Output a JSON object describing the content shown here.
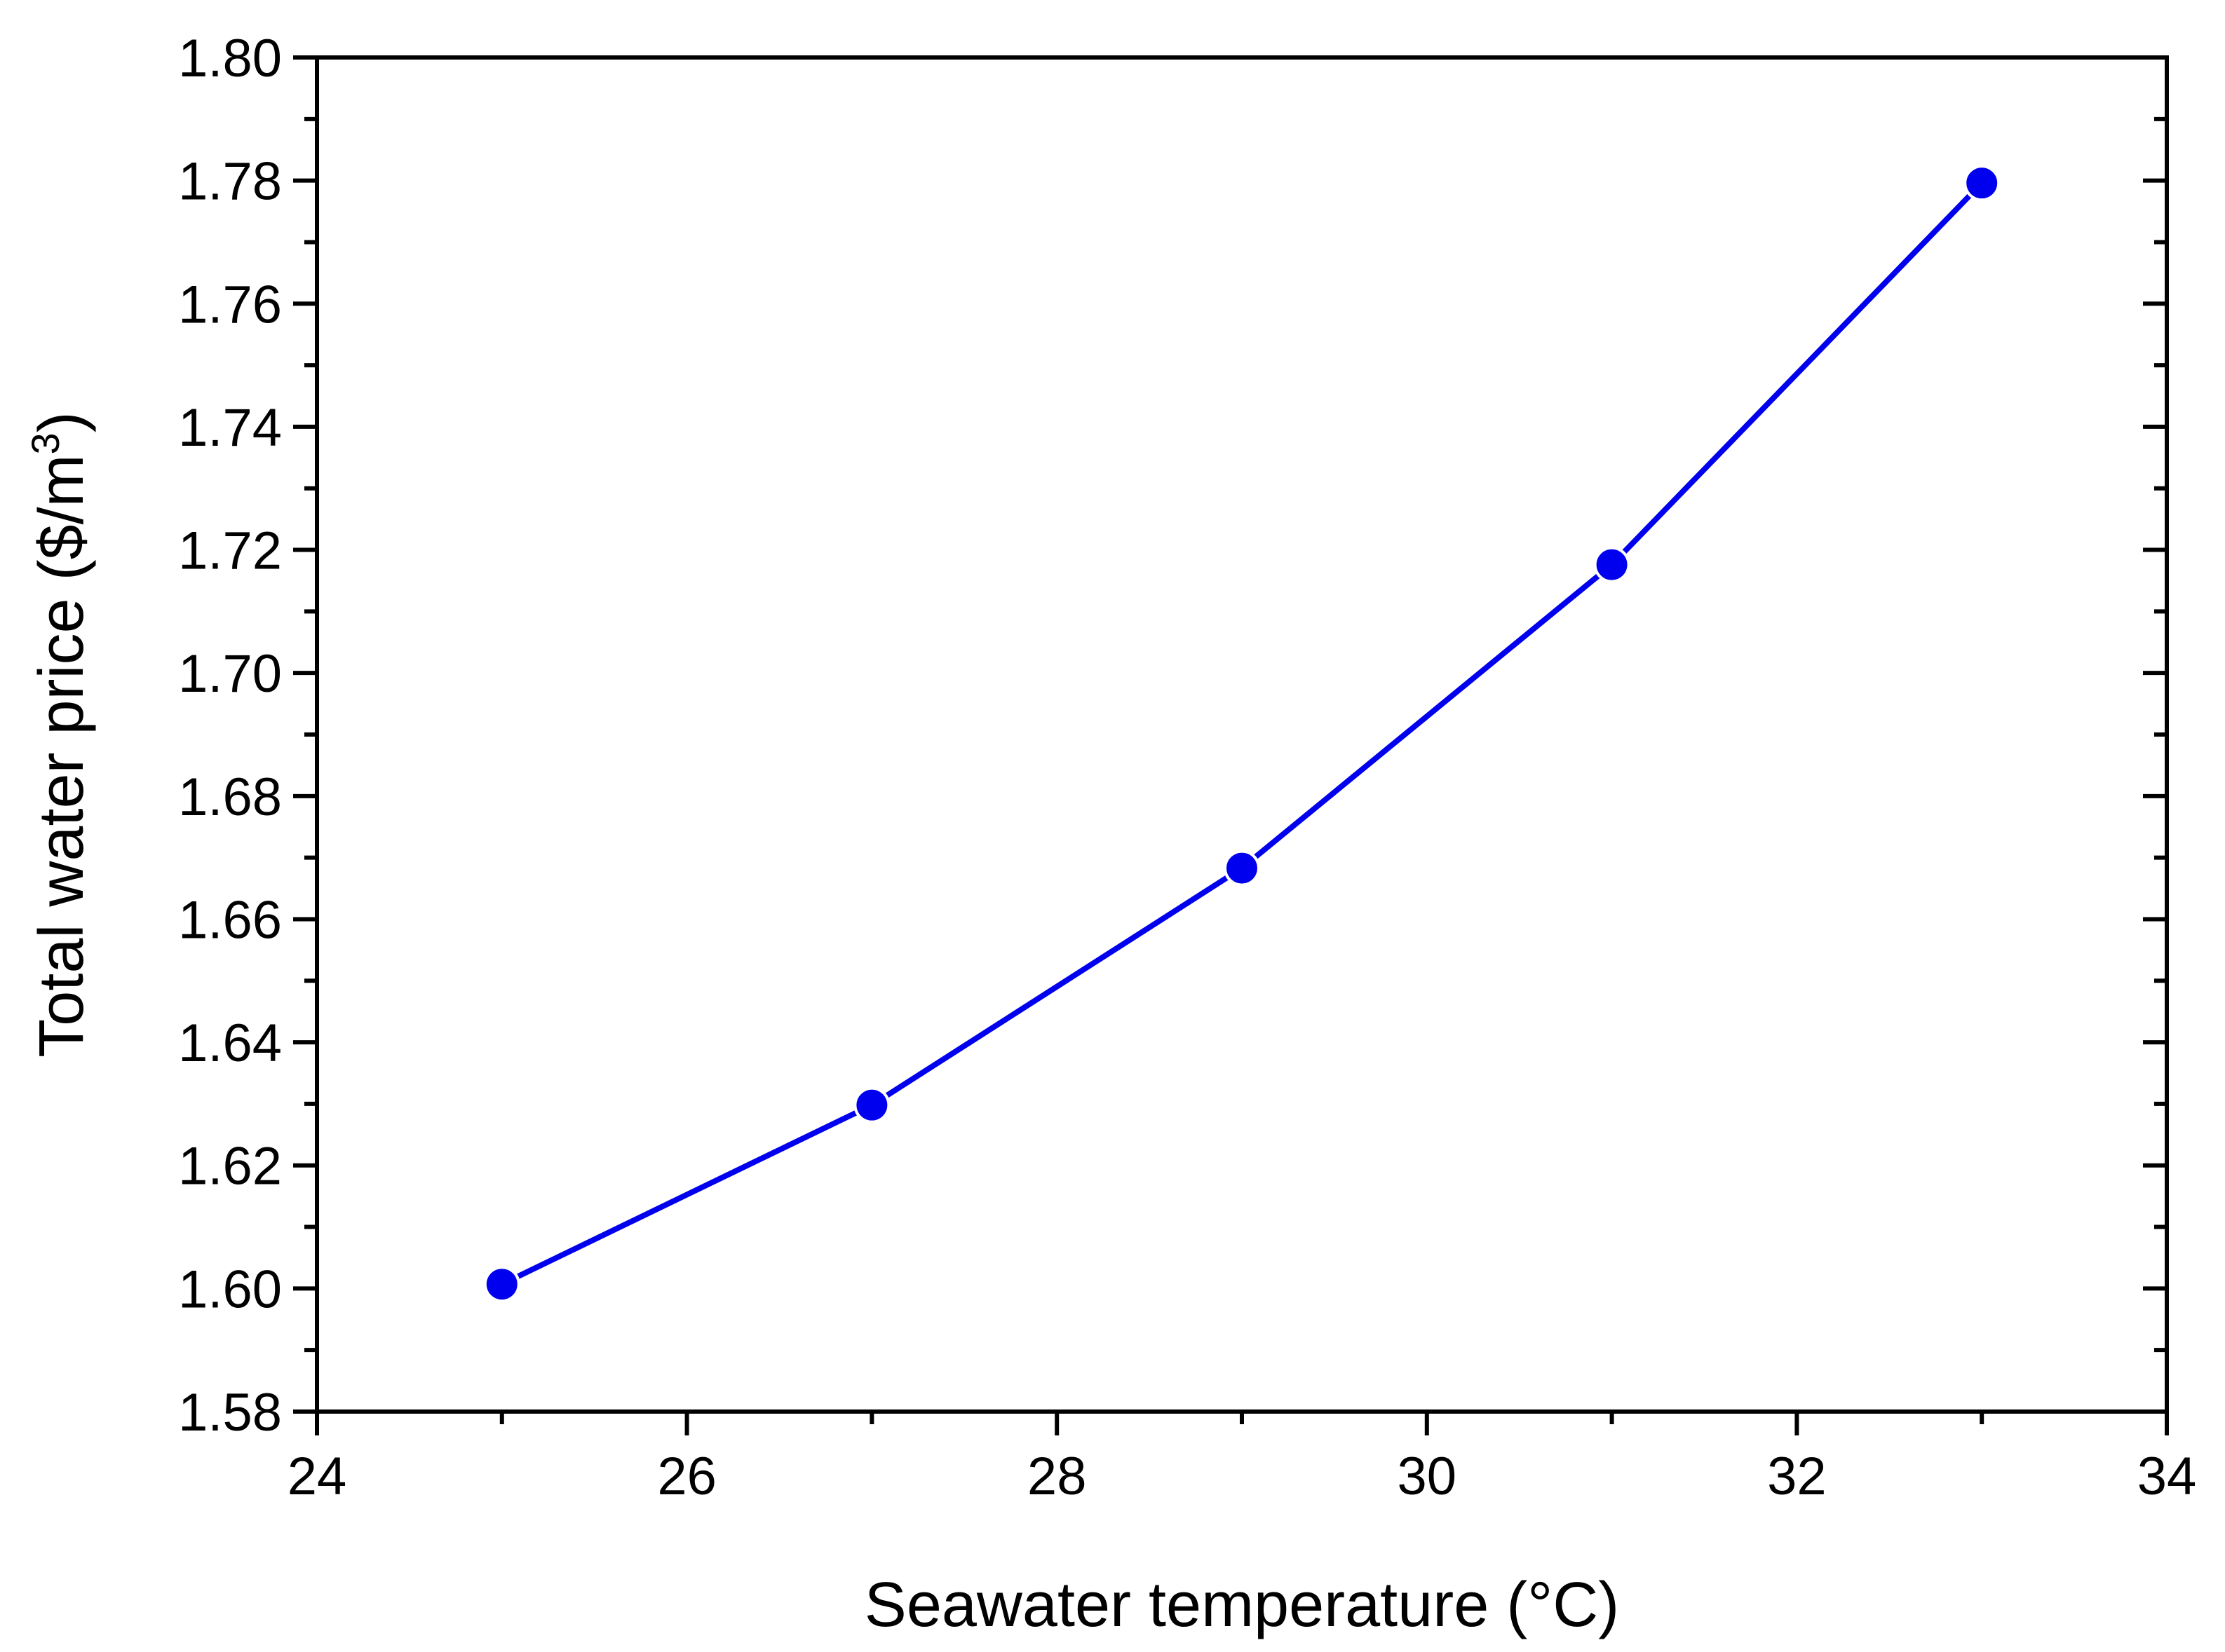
{
  "chart_data": {
    "type": "line",
    "title": "",
    "xlabel": "Seawater temperature (°C)",
    "ylabel": "Total water price ($/m",
    "ylabel_superscript": "3",
    "ylabel_close": ")",
    "xlim": [
      24,
      34
    ],
    "ylim": [
      1.58,
      1.8
    ],
    "x_ticks": [
      24,
      26,
      28,
      30,
      32,
      34
    ],
    "x_tick_labels": [
      "24",
      "26",
      "28",
      "30",
      "32",
      "34"
    ],
    "y_ticks": [
      1.58,
      1.6,
      1.62,
      1.64,
      1.66,
      1.68,
      1.7,
      1.72,
      1.74,
      1.76,
      1.78,
      1.8
    ],
    "y_tick_labels": [
      "1.58",
      "1.60",
      "1.62",
      "1.64",
      "1.66",
      "1.68",
      "1.70",
      "1.72",
      "1.74",
      "1.76",
      "1.78",
      "1.80"
    ],
    "grid": false,
    "legend": "none",
    "series": [
      {
        "name": "Total water price",
        "color": "#0000ee",
        "marker": "circle",
        "x": [
          25,
          27,
          29,
          31,
          33
        ],
        "y": [
          1.6007,
          1.6298,
          1.6683,
          1.7176,
          1.7796
        ]
      }
    ]
  }
}
